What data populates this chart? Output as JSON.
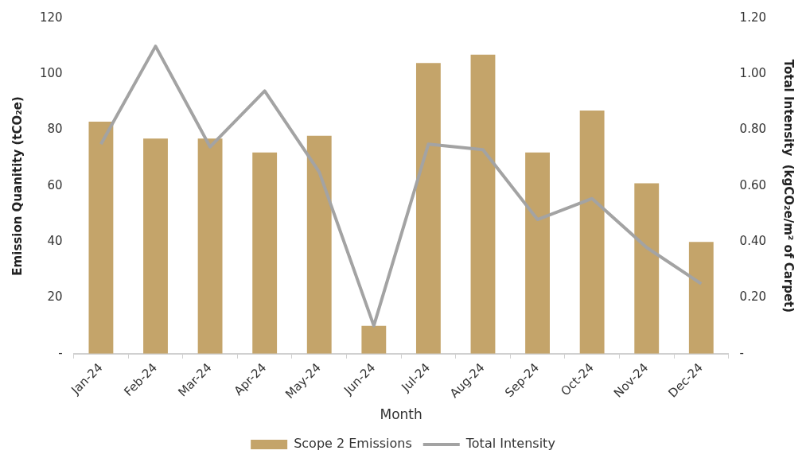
{
  "chart_data": {
    "type": "bar",
    "xlabel": "Month",
    "ylabel": "Emission Quanitity (tCO₂e)",
    "y2label": "Total Intensity  (kgCO₂e/m² of Carpet)",
    "categories": [
      "Jan-24",
      "Feb-24",
      "Mar-24",
      "Apr-24",
      "May-24",
      "Jun-24",
      "Jul-24",
      "Aug-24",
      "Sep-24",
      "Oct-24",
      "Nov-24",
      "Dec-24"
    ],
    "series": [
      {
        "name": "Scope 2 Emissions",
        "color": "#c4a46a",
        "values": [
          83,
          77,
          77,
          72,
          78,
          10,
          104,
          107,
          72,
          87,
          61,
          40
        ]
      },
      {
        "name": "Total Intensity",
        "type": "line",
        "axis": "y2",
        "color": "#a3a3a3",
        "values": [
          0.75,
          1.1,
          0.74,
          0.94,
          0.65,
          0.1,
          0.75,
          0.73,
          0.48,
          0.555,
          0.38,
          0.25
        ]
      }
    ],
    "ylim": [
      0,
      120
    ],
    "yticks": [
      {
        "value": 0,
        "label": "-"
      },
      20,
      40,
      60,
      80,
      100,
      120
    ],
    "y2lim": [
      0,
      1.2
    ],
    "y2ticks": [
      {
        "value": 0,
        "label": "-"
      },
      {
        "value": 0.2,
        "label": "0.20"
      },
      {
        "value": 0.4,
        "label": "0.40"
      },
      {
        "value": 0.6,
        "label": "0.60"
      },
      {
        "value": 0.8,
        "label": "0.80"
      },
      {
        "value": 1,
        "label": "1.00"
      },
      {
        "value": 1.2,
        "label": "1.20"
      }
    ],
    "grid": false,
    "legend": "bottom",
    "marker": "none",
    "line_style": "solid"
  }
}
